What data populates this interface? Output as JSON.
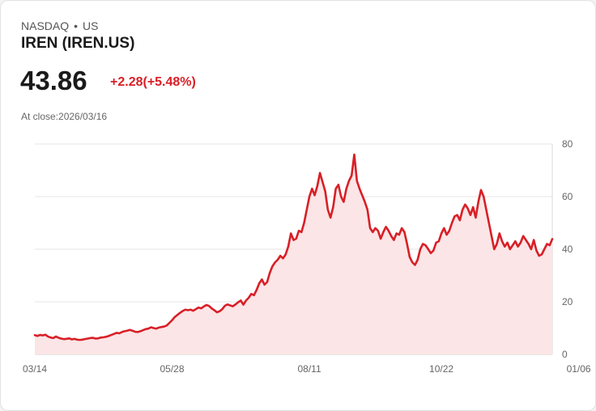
{
  "header": {
    "exchange": "NASDAQ",
    "separator": "•",
    "region": "US",
    "ticker": "IREN (IREN.US)",
    "price": "43.86",
    "change": "+2.28(+5.48%)",
    "close_label": "At close:2026/03/16"
  },
  "colors": {
    "down": "#d81f26",
    "line": "#d81f26",
    "fill": "#fbe5e6",
    "grid": "#e6e6e6"
  },
  "chart_data": {
    "type": "area",
    "title": "",
    "xlabel": "",
    "ylabel": "",
    "ylim": [
      0,
      80
    ],
    "yticks": [
      "80",
      "60",
      "40",
      "20",
      "0"
    ],
    "ytick_values": [
      80,
      60,
      40,
      20,
      0
    ],
    "xticks": [
      "03/14",
      "05/28",
      "08/11",
      "10/22",
      "01/06"
    ],
    "xtick_index": [
      0,
      52,
      104,
      154,
      206
    ],
    "series": [
      {
        "name": "IREN",
        "values": [
          7.3,
          7.0,
          7.4,
          7.2,
          7.5,
          6.8,
          6.4,
          6.2,
          6.8,
          6.3,
          6.0,
          5.8,
          5.9,
          6.1,
          5.7,
          5.9,
          5.6,
          5.5,
          5.6,
          5.8,
          6.0,
          6.2,
          6.3,
          6.0,
          6.1,
          6.4,
          6.5,
          6.7,
          7.0,
          7.4,
          7.8,
          8.2,
          8.0,
          8.5,
          8.8,
          9.0,
          9.3,
          9.0,
          8.6,
          8.5,
          8.8,
          9.2,
          9.6,
          9.8,
          10.3,
          10.0,
          9.8,
          10.2,
          10.4,
          10.6,
          11.0,
          12.0,
          13.0,
          14.2,
          15.0,
          15.8,
          16.5,
          17.0,
          16.8,
          17.0,
          16.6,
          17.2,
          17.8,
          17.5,
          18.2,
          18.8,
          18.4,
          17.5,
          16.8,
          16.0,
          16.4,
          17.2,
          18.5,
          19.0,
          18.6,
          18.3,
          19.0,
          19.8,
          20.5,
          18.9,
          20.5,
          21.5,
          23.0,
          22.5,
          24.5,
          27.0,
          28.5,
          26.5,
          27.5,
          31.0,
          33.5,
          35.0,
          36.0,
          37.5,
          36.5,
          38.0,
          41.0,
          46.0,
          43.5,
          44.0,
          47.0,
          46.5,
          50.0,
          55.0,
          60.0,
          63.0,
          60.5,
          64.0,
          69.0,
          65.5,
          62.0,
          55.0,
          52.0,
          56.0,
          63.0,
          64.5,
          60.0,
          58.0,
          63.0,
          66.0,
          68.0,
          76.0,
          66.0,
          63.0,
          60.5,
          58.0,
          55.0,
          48.0,
          46.5,
          48.0,
          47.0,
          44.0,
          46.5,
          48.5,
          47.0,
          45.0,
          43.5,
          46.0,
          45.5,
          48.0,
          46.5,
          42.0,
          37.0,
          35.0,
          34.0,
          36.0,
          40.0,
          42.0,
          41.5,
          40.0,
          38.5,
          39.5,
          42.5,
          43.0,
          46.0,
          48.0,
          45.5,
          47.0,
          50.0,
          52.5,
          53.0,
          51.0,
          55.0,
          57.0,
          55.5,
          53.0,
          56.0,
          52.0,
          58.0,
          62.5,
          60.0,
          55.0,
          50.0,
          45.0,
          40.0,
          42.0,
          46.0,
          43.0,
          41.0,
          42.5,
          40.0,
          41.5,
          43.0,
          41.0,
          42.5,
          45.0,
          43.5,
          42.0,
          40.0,
          43.5,
          39.5,
          37.5,
          38.0,
          40.0,
          42.0,
          41.5,
          43.86
        ]
      }
    ]
  }
}
